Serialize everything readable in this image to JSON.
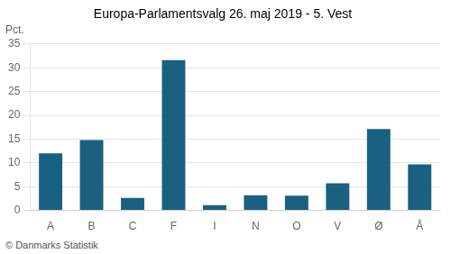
{
  "chart_data": {
    "type": "bar",
    "title": "Europa-Parlamentsvalg 26. maj 2019 - 5. Vest",
    "categories": [
      "A",
      "B",
      "C",
      "F",
      "I",
      "N",
      "O",
      "V",
      "Ø",
      "Å"
    ],
    "values": [
      12.0,
      14.8,
      2.6,
      31.6,
      1.1,
      3.2,
      3.1,
      5.7,
      17.1,
      9.7
    ],
    "color": "#1a6080",
    "ylim": [
      0,
      35
    ],
    "yticks": [
      0,
      5,
      10,
      15,
      20,
      25,
      30,
      35
    ],
    "ylabel": "Pct.",
    "footer": "© Danmarks Statistik",
    "grid": true
  }
}
